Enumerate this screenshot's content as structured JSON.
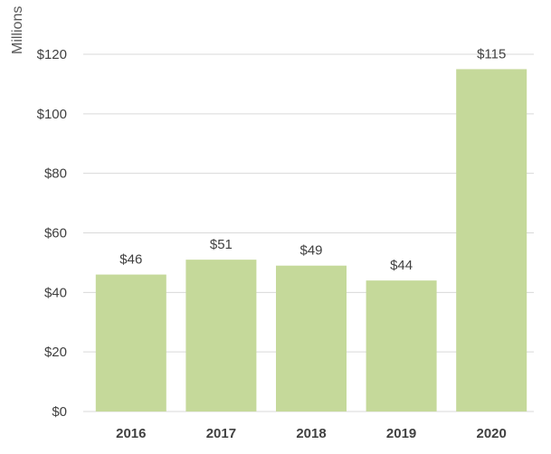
{
  "chart_data": {
    "type": "bar",
    "ylabel": "Millions",
    "categories": [
      "2016",
      "2017",
      "2018",
      "2019",
      "2020"
    ],
    "values": [
      46,
      51,
      49,
      44,
      115
    ],
    "data_labels": [
      "$46",
      "$51",
      "$49",
      "$44",
      "$115"
    ],
    "ylim": [
      0,
      120
    ],
    "yticks": [
      0,
      20,
      40,
      60,
      80,
      100,
      120
    ],
    "ytick_labels": [
      "$0",
      "$20",
      "$40",
      "$60",
      "$80",
      "$100",
      "$120"
    ],
    "grid": true,
    "bar_color": "#c5d99a",
    "gridline_color": "#d9d9d9"
  }
}
